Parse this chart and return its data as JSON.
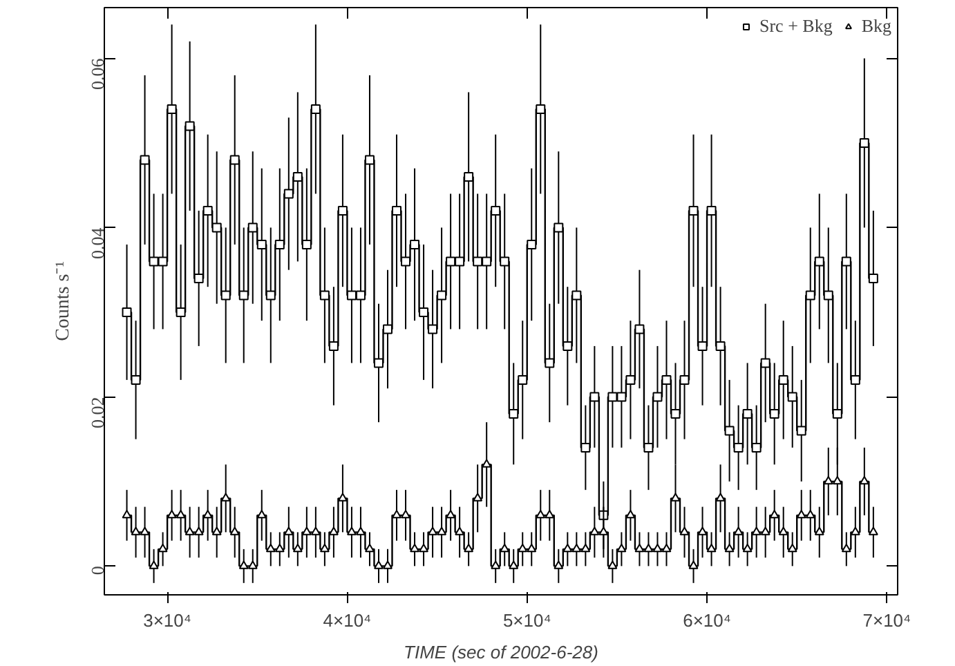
{
  "chart_data": {
    "type": "step",
    "xlabel": "TIME (sec of 2002-6-28)",
    "ylabel": "Counts s⁻¹",
    "x": [
      27750,
      28250,
      28750,
      29250,
      29750,
      30250,
      30750,
      31250,
      31750,
      32250,
      32750,
      33250,
      33750,
      34250,
      34750,
      35250,
      35750,
      36250,
      36750,
      37250,
      37750,
      38250,
      38750,
      39250,
      39750,
      40250,
      40750,
      41250,
      41750,
      42250,
      42750,
      43250,
      43750,
      44250,
      44750,
      45250,
      45750,
      46250,
      46750,
      47250,
      47750,
      48250,
      48750,
      49250,
      49750,
      50250,
      50750,
      51250,
      51750,
      52250,
      52750,
      53250,
      53750,
      54250,
      54750,
      55250,
      55750,
      56250,
      56750,
      57250,
      57750,
      58250,
      58750,
      59250,
      59750,
      60250,
      60750,
      61250,
      61750,
      62250,
      62750,
      63250,
      63750,
      64250,
      64750,
      65250,
      65750,
      66250,
      66750,
      67250,
      67750,
      68250,
      68750,
      69250
    ],
    "series": [
      {
        "name": "Src + Bkg",
        "color": "#000000",
        "marker": "square",
        "values": [
          0.03,
          0.022,
          0.048,
          0.036,
          0.036,
          0.054,
          0.03,
          0.052,
          0.034,
          0.042,
          0.04,
          0.032,
          0.048,
          0.032,
          0.04,
          0.038,
          0.032,
          0.038,
          0.044,
          0.046,
          0.038,
          0.054,
          0.032,
          0.026,
          0.042,
          0.032,
          0.032,
          0.048,
          0.024,
          0.028,
          0.042,
          0.036,
          0.038,
          0.03,
          0.028,
          0.032,
          0.036,
          0.036,
          0.046,
          0.036,
          0.036,
          0.042,
          0.036,
          0.018,
          0.022,
          0.038,
          0.054,
          0.024,
          0.04,
          0.026,
          0.032,
          0.014,
          0.02,
          0.006,
          0.02,
          0.02,
          0.022,
          0.028,
          0.014,
          0.02,
          0.022,
          0.018,
          0.022,
          0.042,
          0.026,
          0.042,
          0.026,
          0.016,
          0.014,
          0.018,
          0.014,
          0.024,
          0.018,
          0.022,
          0.02,
          0.016,
          0.032,
          0.036,
          0.032,
          0.018,
          0.036,
          0.022,
          0.05,
          0.034
        ],
        "errors": [
          0.008,
          0.007,
          0.01,
          0.008,
          0.008,
          0.01,
          0.008,
          0.01,
          0.008,
          0.009,
          0.009,
          0.008,
          0.01,
          0.008,
          0.009,
          0.009,
          0.008,
          0.009,
          0.009,
          0.01,
          0.009,
          0.01,
          0.008,
          0.007,
          0.009,
          0.008,
          0.008,
          0.01,
          0.007,
          0.007,
          0.009,
          0.008,
          0.009,
          0.008,
          0.007,
          0.008,
          0.008,
          0.008,
          0.01,
          0.008,
          0.008,
          0.009,
          0.008,
          0.006,
          0.007,
          0.009,
          0.01,
          0.007,
          0.009,
          0.007,
          0.008,
          0.005,
          0.006,
          0.004,
          0.006,
          0.006,
          0.007,
          0.007,
          0.005,
          0.006,
          0.007,
          0.006,
          0.007,
          0.009,
          0.007,
          0.009,
          0.007,
          0.006,
          0.005,
          0.006,
          0.005,
          0.007,
          0.006,
          0.007,
          0.006,
          0.006,
          0.008,
          0.008,
          0.008,
          0.006,
          0.008,
          0.007,
          0.01,
          0.008
        ]
      },
      {
        "name": "Bkg",
        "color": "#000000",
        "marker": "triangle",
        "values": [
          0.006,
          0.004,
          0.004,
          0.0,
          0.002,
          0.006,
          0.006,
          0.004,
          0.004,
          0.006,
          0.004,
          0.008,
          0.004,
          0.0,
          0.0,
          0.006,
          0.002,
          0.002,
          0.004,
          0.002,
          0.004,
          0.004,
          0.002,
          0.004,
          0.008,
          0.004,
          0.004,
          0.002,
          0.0,
          0.0,
          0.006,
          0.006,
          0.002,
          0.002,
          0.004,
          0.004,
          0.006,
          0.004,
          0.002,
          0.008,
          0.012,
          0.0,
          0.002,
          0.0,
          0.002,
          0.002,
          0.006,
          0.006,
          0.0,
          0.002,
          0.002,
          0.002,
          0.004,
          0.004,
          0.0,
          0.002,
          0.006,
          0.002,
          0.002,
          0.002,
          0.002,
          0.008,
          0.004,
          0.0,
          0.004,
          0.002,
          0.008,
          0.002,
          0.004,
          0.002,
          0.004,
          0.004,
          0.006,
          0.004,
          0.002,
          0.006,
          0.006,
          0.004,
          0.01,
          0.01,
          0.002,
          0.004,
          0.01,
          0.004
        ],
        "errors": [
          0.003,
          0.003,
          0.003,
          0.002,
          0.002,
          0.003,
          0.003,
          0.003,
          0.003,
          0.003,
          0.003,
          0.004,
          0.003,
          0.002,
          0.002,
          0.003,
          0.002,
          0.002,
          0.003,
          0.002,
          0.003,
          0.003,
          0.002,
          0.003,
          0.004,
          0.003,
          0.003,
          0.002,
          0.002,
          0.002,
          0.003,
          0.003,
          0.002,
          0.002,
          0.003,
          0.003,
          0.003,
          0.003,
          0.002,
          0.004,
          0.005,
          0.002,
          0.002,
          0.002,
          0.002,
          0.002,
          0.003,
          0.003,
          0.002,
          0.002,
          0.002,
          0.002,
          0.003,
          0.003,
          0.002,
          0.002,
          0.003,
          0.002,
          0.002,
          0.002,
          0.002,
          0.004,
          0.003,
          0.002,
          0.003,
          0.002,
          0.004,
          0.002,
          0.003,
          0.002,
          0.003,
          0.003,
          0.003,
          0.003,
          0.002,
          0.003,
          0.003,
          0.003,
          0.004,
          0.004,
          0.002,
          0.003,
          0.004,
          0.003
        ]
      }
    ],
    "xlim": [
      26500,
      70600
    ],
    "ylim": [
      -0.0034,
      0.066
    ],
    "xticks": [
      {
        "value": 30000,
        "label": "3×10⁴"
      },
      {
        "value": 40000,
        "label": "4×10⁴"
      },
      {
        "value": 50000,
        "label": "5×10⁴"
      },
      {
        "value": 60000,
        "label": "6×10⁴"
      },
      {
        "value": 70000,
        "label": "7×10⁴"
      }
    ],
    "yticks": [
      0,
      0.02,
      0.04,
      0.06
    ],
    "grid": false,
    "legend": "top right"
  }
}
